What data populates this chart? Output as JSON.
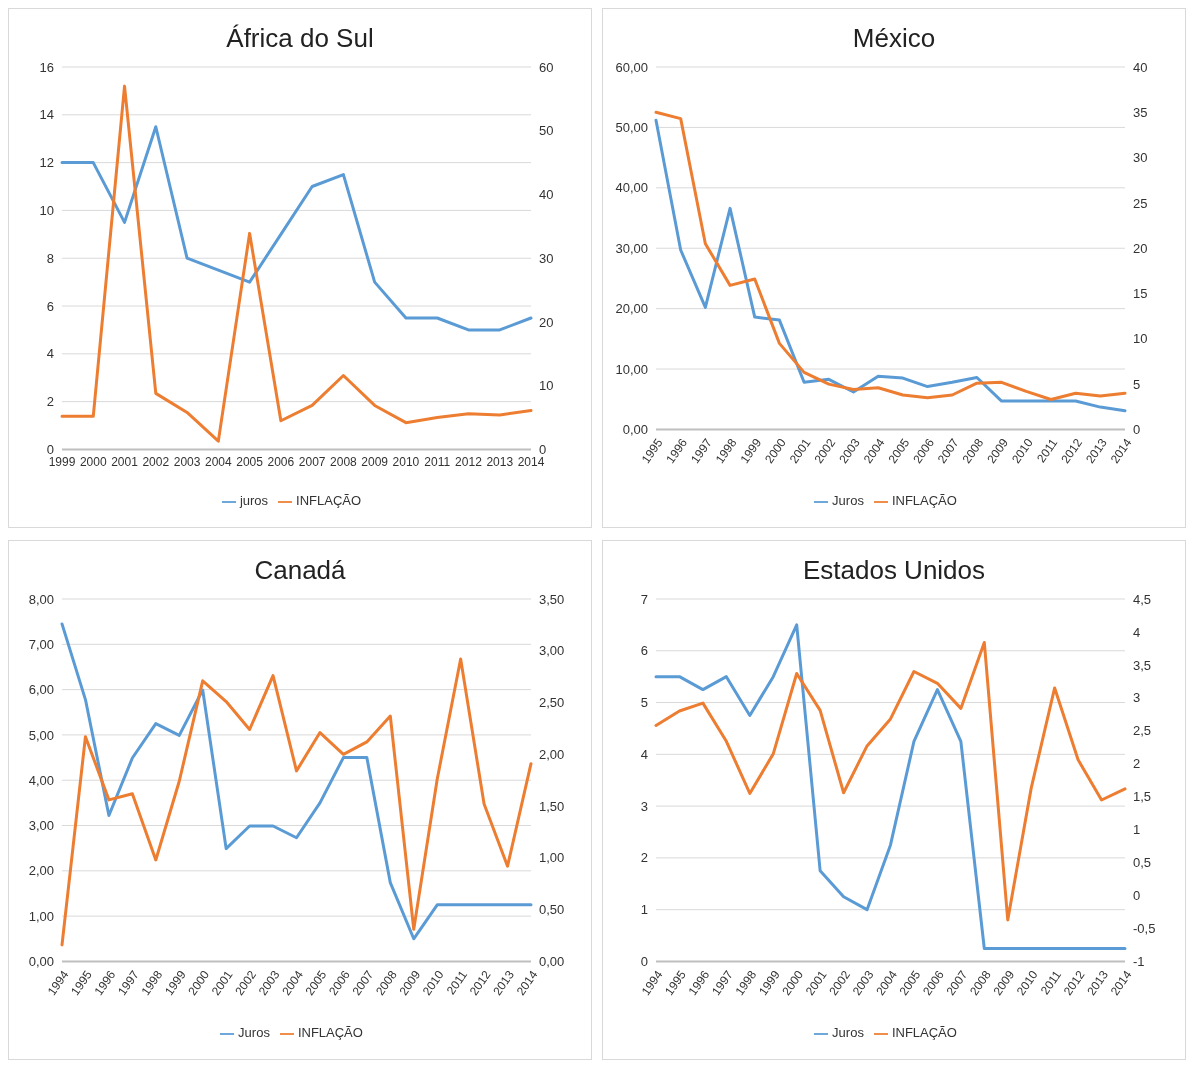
{
  "chart_data": [
    {
      "type": "line",
      "title": "África do Sul",
      "categories": [
        "1999",
        "2000",
        "2001",
        "2002",
        "2003",
        "2004",
        "2005",
        "2006",
        "2007",
        "2008",
        "2009",
        "2010",
        "2011",
        "2012",
        "2013",
        "2014"
      ],
      "series": [
        {
          "name": "juros",
          "color": "#5b9bd5",
          "values": [
            12,
            12,
            9.5,
            13.5,
            8,
            7.5,
            7,
            9,
            11,
            11.5,
            7,
            5.5,
            5.5,
            5,
            5,
            5.5
          ]
        },
        {
          "name": "INFLAÇÃO",
          "color": "#ed7d31",
          "axis": "y2",
          "values": [
            5.2,
            5.2,
            57,
            8.8,
            5.8,
            1.3,
            33.9,
            4.5,
            6.9,
            11.6,
            6.9,
            4.2,
            5.0,
            5.6,
            5.4,
            6.1
          ]
        }
      ],
      "ylim": [
        0,
        16
      ],
      "yticks": [
        0,
        2,
        4,
        6,
        8,
        10,
        12,
        14,
        16
      ],
      "y2lim": [
        0,
        60
      ],
      "y2ticks": [
        0,
        10,
        20,
        30,
        40,
        50,
        60
      ],
      "grid": "y",
      "legend": "bottom",
      "marker": "none",
      "line_style": "solid"
    },
    {
      "type": "line",
      "title": "México",
      "categories": [
        "1995",
        "1996",
        "1997",
        "1998",
        "1999",
        "2000",
        "2001",
        "2002",
        "2003",
        "2004",
        "2005",
        "2006",
        "2007",
        "2008",
        "2009",
        "2010",
        "2011",
        "2012",
        "2013",
        "2014"
      ],
      "series": [
        {
          "name": "Juros",
          "color": "#5b9bd5",
          "values": [
            51.2,
            29.7,
            20.2,
            36.6,
            18.6,
            18.1,
            7.8,
            8.3,
            6.2,
            8.8,
            8.5,
            7.1,
            7.8,
            8.6,
            4.7,
            4.7,
            4.7,
            4.7,
            3.7,
            3.1
          ]
        },
        {
          "name": "INFLAÇÃO",
          "color": "#ed7d31",
          "axis": "y2",
          "values": [
            35.0,
            34.3,
            20.5,
            15.9,
            16.6,
            9.5,
            6.3,
            5.0,
            4.4,
            4.6,
            3.8,
            3.5,
            3.8,
            5.1,
            5.2,
            4.2,
            3.3,
            4.0,
            3.7,
            4.0
          ]
        }
      ],
      "ylim": [
        0,
        60
      ],
      "yticks": [
        {
          "value": 0,
          "label": "0,00"
        },
        {
          "value": 10,
          "label": "10,00"
        },
        {
          "value": 20,
          "label": "20,00"
        },
        {
          "value": 30,
          "label": "30,00"
        },
        {
          "value": 40,
          "label": "40,00"
        },
        {
          "value": 50,
          "label": "50,00"
        },
        {
          "value": 60,
          "label": "60,00"
        }
      ],
      "y2lim": [
        0,
        40
      ],
      "y2ticks": [
        0,
        5,
        10,
        15,
        20,
        25,
        30,
        35,
        40
      ],
      "grid": "y",
      "legend": "bottom",
      "marker": "none",
      "line_style": "solid"
    },
    {
      "type": "line",
      "title": "Canadá",
      "categories": [
        "1994",
        "1995",
        "1996",
        "1997",
        "1998",
        "1999",
        "2000",
        "2001",
        "2002",
        "2003",
        "2004",
        "2005",
        "2006",
        "2007",
        "2008",
        "2009",
        "2010",
        "2011",
        "2012",
        "2013",
        "2014"
      ],
      "series": [
        {
          "name": "Juros",
          "color": "#5b9bd5",
          "values": [
            7.45,
            5.78,
            3.22,
            4.49,
            5.25,
            4.99,
            5.99,
            2.49,
            2.99,
            2.99,
            2.73,
            3.5,
            4.5,
            4.5,
            1.74,
            0.5,
            1.25,
            1.25,
            1.25,
            1.25,
            1.25
          ]
        },
        {
          "name": "INFLAÇÃO",
          "color": "#ed7d31",
          "axis": "y2",
          "values": [
            0.16,
            2.17,
            1.56,
            1.62,
            0.98,
            1.74,
            2.71,
            2.51,
            2.24,
            2.76,
            1.84,
            2.21,
            2.0,
            2.12,
            2.37,
            0.31,
            1.76,
            2.92,
            1.52,
            0.92,
            1.91
          ]
        }
      ],
      "ylim": [
        0,
        8
      ],
      "yticks": [
        {
          "value": 0,
          "label": "0,00"
        },
        {
          "value": 1,
          "label": "1,00"
        },
        {
          "value": 2,
          "label": "2,00"
        },
        {
          "value": 3,
          "label": "3,00"
        },
        {
          "value": 4,
          "label": "4,00"
        },
        {
          "value": 5,
          "label": "5,00"
        },
        {
          "value": 6,
          "label": "6,00"
        },
        {
          "value": 7,
          "label": "7,00"
        },
        {
          "value": 8,
          "label": "8,00"
        }
      ],
      "y2lim": [
        0,
        3.5
      ],
      "y2ticks": [
        {
          "value": 0,
          "label": "0,00"
        },
        {
          "value": 0.5,
          "label": "0,50"
        },
        {
          "value": 1,
          "label": "1,00"
        },
        {
          "value": 1.5,
          "label": "1,50"
        },
        {
          "value": 2,
          "label": "2,00"
        },
        {
          "value": 2.5,
          "label": "2,50"
        },
        {
          "value": 3,
          "label": "3,00"
        },
        {
          "value": 3.5,
          "label": "3,50"
        }
      ],
      "grid": "y",
      "legend": "bottom",
      "marker": "none",
      "line_style": "solid"
    },
    {
      "type": "line",
      "title": "Estados Unidos",
      "categories": [
        "1994",
        "1995",
        "1996",
        "1997",
        "1998",
        "1999",
        "2000",
        "2001",
        "2002",
        "2003",
        "2004",
        "2005",
        "2006",
        "2007",
        "2008",
        "2009",
        "2010",
        "2011",
        "2012",
        "2013",
        "2014"
      ],
      "series": [
        {
          "name": "Juros",
          "color": "#5b9bd5",
          "values": [
            5.5,
            5.5,
            5.25,
            5.5,
            4.75,
            5.5,
            6.5,
            1.75,
            1.25,
            1.0,
            2.25,
            4.25,
            5.25,
            4.25,
            0.25,
            0.25,
            0.25,
            0.25,
            0.25,
            0.25,
            0.25
          ]
        },
        {
          "name": "INFLAÇÃO",
          "color": "#ed7d31",
          "axis": "y2",
          "values": [
            2.58,
            2.8,
            2.92,
            2.34,
            1.55,
            2.15,
            3.37,
            2.81,
            1.56,
            2.27,
            2.68,
            3.4,
            3.22,
            2.84,
            3.84,
            -0.37,
            1.63,
            3.15,
            2.06,
            1.45,
            1.62
          ]
        }
      ],
      "ylim": [
        0,
        7
      ],
      "yticks": [
        0,
        1,
        2,
        3,
        4,
        5,
        6,
        7
      ],
      "y2lim": [
        -1,
        4.5
      ],
      "y2ticks": [
        -1,
        {
          "value": -0.5,
          "label": "-0,5"
        },
        0,
        {
          "value": 0.5,
          "label": "0,5"
        },
        1,
        {
          "value": 1.5,
          "label": "1,5"
        },
        2,
        {
          "value": 2.5,
          "label": "2,5"
        },
        3,
        {
          "value": 3.5,
          "label": "3,5"
        },
        4,
        {
          "value": 4.5,
          "label": "4,5"
        }
      ],
      "grid": "y",
      "legend": "bottom",
      "marker": "none",
      "line_style": "solid"
    }
  ]
}
